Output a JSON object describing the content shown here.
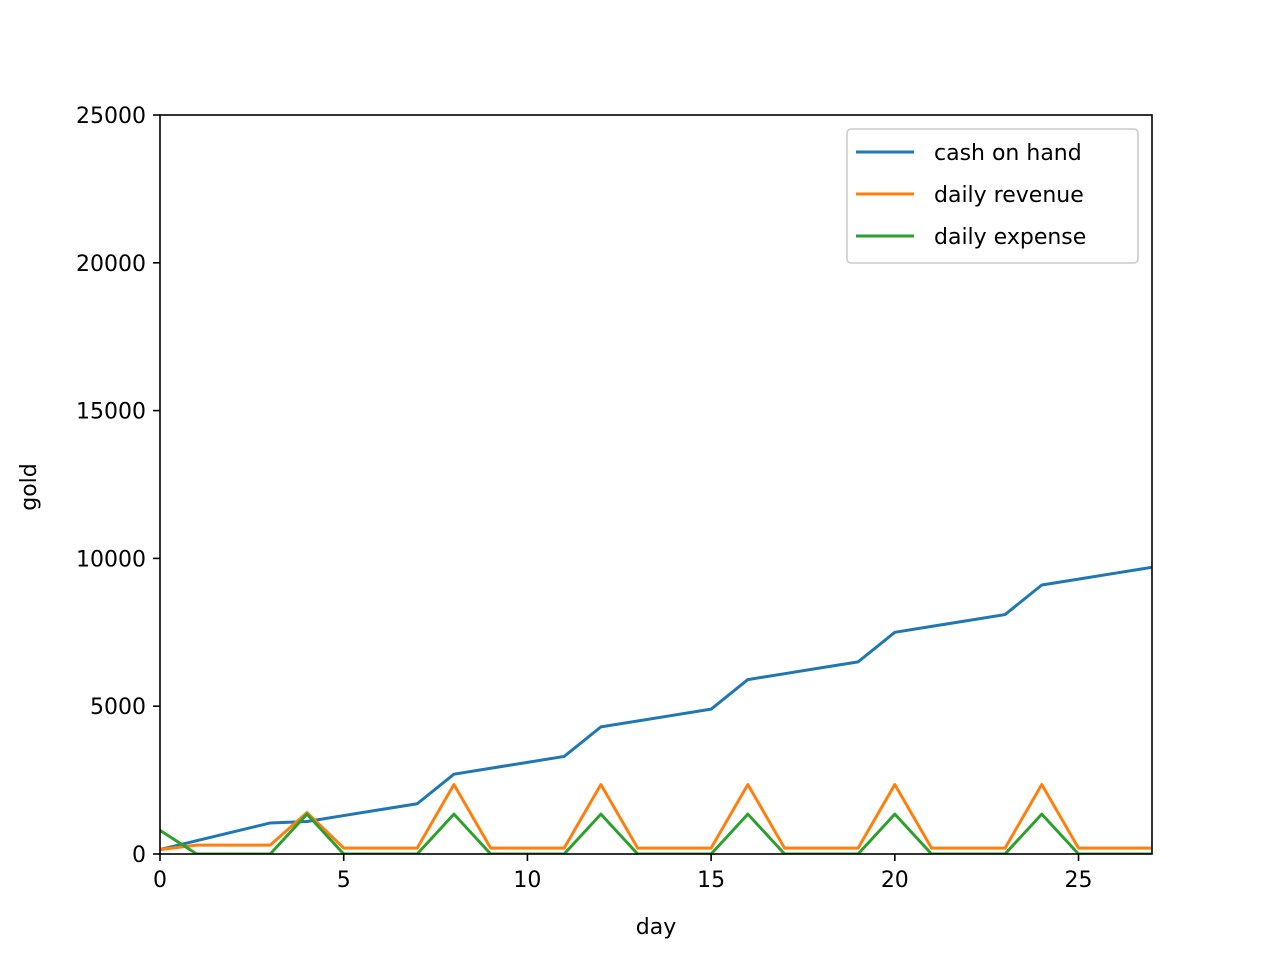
{
  "chart_data": {
    "type": "line",
    "title": "",
    "xlabel": "day",
    "ylabel": "gold",
    "xlim": [
      0,
      27
    ],
    "ylim": [
      0,
      25000
    ],
    "xticks": [
      0,
      5,
      10,
      15,
      20,
      25
    ],
    "yticks": [
      0,
      5000,
      10000,
      15000,
      20000,
      25000
    ],
    "grid": false,
    "legend_position": "top-right",
    "x": [
      0,
      1,
      2,
      3,
      4,
      5,
      6,
      7,
      8,
      9,
      10,
      11,
      12,
      13,
      14,
      15,
      16,
      17,
      18,
      19,
      20,
      21,
      22,
      23,
      24,
      25,
      26,
      27
    ],
    "series": [
      {
        "name": "cash on hand",
        "color": "#1f77b4",
        "values": [
          150,
          450,
          750,
          1050,
          1100,
          1300,
          1500,
          1700,
          2700,
          2900,
          3100,
          3300,
          4300,
          4500,
          4700,
          4900,
          5900,
          6100,
          6300,
          6500,
          7500,
          7700,
          7900,
          8100,
          9100,
          9300,
          9500,
          9700
        ]
      },
      {
        "name": "daily revenue",
        "color": "#ff7f0e",
        "values": [
          150,
          300,
          300,
          300,
          1400,
          200,
          200,
          200,
          2350,
          200,
          200,
          200,
          2350,
          200,
          200,
          200,
          2350,
          200,
          200,
          200,
          2350,
          200,
          200,
          200,
          2350,
          200,
          200,
          200
        ]
      },
      {
        "name": "daily expense",
        "color": "#2ca02c",
        "values": [
          800,
          0,
          0,
          0,
          1350,
          0,
          0,
          0,
          1350,
          0,
          0,
          0,
          1350,
          0,
          0,
          0,
          1350,
          0,
          0,
          0,
          1350,
          0,
          0,
          0,
          1350,
          0,
          0,
          0
        ]
      }
    ]
  }
}
